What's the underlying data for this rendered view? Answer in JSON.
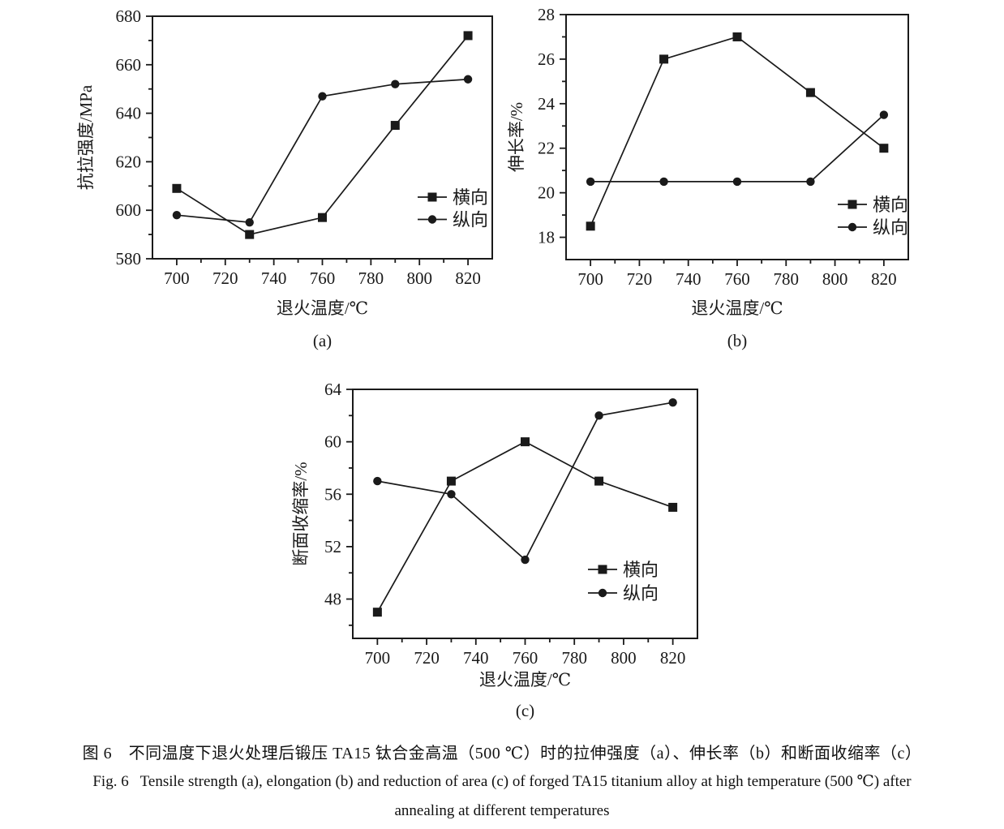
{
  "page": {
    "background": "#ffffff",
    "ink_color": "#1a1a1a"
  },
  "caption": {
    "zh": "图 6　不同温度下退火处理后锻压 TA15 钛合金高温（500 ℃）时的拉伸强度（a）、伸长率（b）和断面收缩率（c）",
    "en_line1": "Fig. 6   Tensile strength (a), elongation (b) and reduction of area (c) of forged TA15 titanium alloy at high temperature (500 ℃) after",
    "en_line2": "annealing at different temperatures"
  },
  "chart_data": [
    {
      "id": "a",
      "type": "line",
      "subplot_label": "(a)",
      "xlabel": "退火温度/℃",
      "ylabel": "抗拉强度/MPa",
      "x": [
        700,
        730,
        760,
        790,
        820
      ],
      "series": [
        {
          "name": "横向",
          "marker": "square",
          "values": [
            609,
            590,
            597,
            635,
            672
          ]
        },
        {
          "name": "纵向",
          "marker": "circle",
          "values": [
            598,
            595,
            647,
            652,
            654
          ]
        }
      ],
      "xlim": [
        690,
        830
      ],
      "ylim": [
        580,
        680
      ],
      "xticks": [
        700,
        720,
        740,
        760,
        780,
        800,
        820
      ],
      "yticks": [
        580,
        600,
        620,
        640,
        660,
        680
      ],
      "x_minor_step": 10,
      "y_minor_step": 10,
      "grid": false,
      "legend_position": "lower-right"
    },
    {
      "id": "b",
      "type": "line",
      "subplot_label": "(b)",
      "xlabel": "退火温度/℃",
      "ylabel": "伸长率/%",
      "x": [
        700,
        730,
        760,
        790,
        820
      ],
      "series": [
        {
          "name": "横向",
          "marker": "square",
          "values": [
            18.5,
            26,
            27,
            24.5,
            22
          ]
        },
        {
          "name": "纵向",
          "marker": "circle",
          "values": [
            20.5,
            20.5,
            20.5,
            20.5,
            23.5
          ]
        }
      ],
      "xlim": [
        690,
        830
      ],
      "ylim": [
        17,
        28
      ],
      "xticks": [
        700,
        720,
        740,
        760,
        780,
        800,
        820
      ],
      "yticks": [
        18,
        20,
        22,
        24,
        26,
        28
      ],
      "x_minor_step": 10,
      "y_minor_step": 1,
      "grid": false,
      "legend_position": "lower-right"
    },
    {
      "id": "c",
      "type": "line",
      "subplot_label": "(c)",
      "xlabel": "退火温度/℃",
      "ylabel": "断面收缩率/%",
      "x": [
        700,
        730,
        760,
        790,
        820
      ],
      "series": [
        {
          "name": "横向",
          "marker": "square",
          "values": [
            47,
            57,
            60,
            57,
            55
          ]
        },
        {
          "name": "纵向",
          "marker": "circle",
          "values": [
            57,
            56,
            51,
            62,
            63
          ]
        }
      ],
      "xlim": [
        690,
        830
      ],
      "ylim": [
        45,
        64
      ],
      "xticks": [
        700,
        720,
        740,
        760,
        780,
        800,
        820
      ],
      "yticks": [
        48,
        52,
        56,
        60,
        64
      ],
      "x_minor_step": 10,
      "y_minor_step": 2,
      "grid": false,
      "legend_position": "lower-right"
    }
  ]
}
